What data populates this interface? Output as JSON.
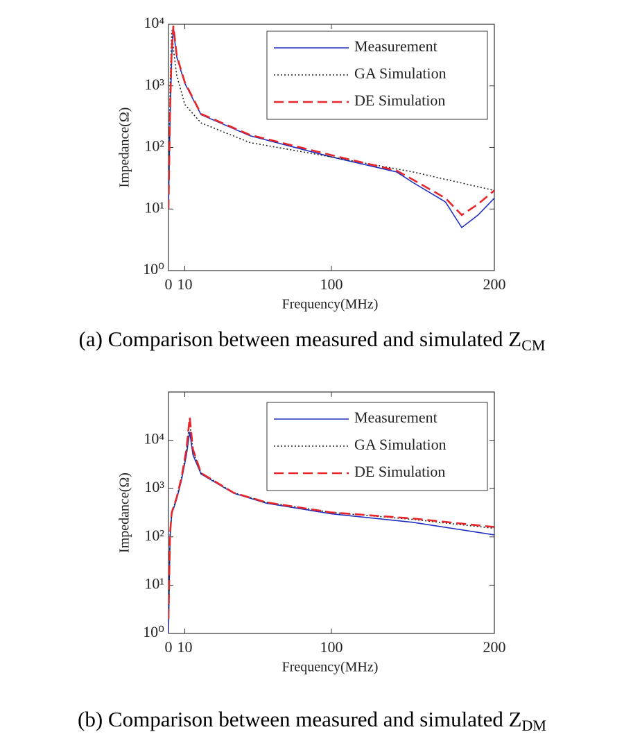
{
  "chart_data": [
    {
      "type": "line",
      "caption": "(a) Comparison between measured and simulated Z",
      "caption_sub": "CM",
      "xlabel": "Frequency(MHz)",
      "ylabel": "Impedance(Ω)",
      "xlim": [
        0,
        200
      ],
      "xticks": [
        0,
        10,
        100,
        200
      ],
      "ylim": [
        1,
        10000
      ],
      "yscale": "log",
      "yticks": [
        {
          "value": 1,
          "label": "10⁰"
        },
        {
          "value": 10,
          "label": "10¹"
        },
        {
          "value": 100,
          "label": "10²"
        },
        {
          "value": 1000,
          "label": "10³"
        },
        {
          "value": 10000,
          "label": "10⁴"
        }
      ],
      "legend": "upper right",
      "series": [
        {
          "name": "Measurement",
          "color": "#1f2fbf",
          "linestyle": "solid",
          "x": [
            0,
            1,
            2,
            3,
            4,
            5,
            7,
            10,
            20,
            50,
            100,
            140,
            150,
            170,
            180,
            190,
            200
          ],
          "values": [
            10,
            300,
            3000,
            9000,
            5000,
            3000,
            2000,
            1100,
            340,
            155,
            70,
            40,
            27,
            13,
            5,
            8,
            15
          ]
        },
        {
          "name": "GA Simulation",
          "color": "#222222",
          "linestyle": "dotted",
          "x": [
            0,
            1,
            2,
            3,
            5,
            10,
            20,
            50,
            100,
            150,
            200
          ],
          "values": [
            20,
            1000,
            8000,
            4000,
            1500,
            500,
            250,
            120,
            70,
            40,
            20
          ]
        },
        {
          "name": "DE Simulation",
          "color": "#e8262a",
          "linestyle": "dashed",
          "x": [
            0,
            1,
            2,
            3,
            4,
            5,
            7,
            10,
            20,
            50,
            100,
            140,
            150,
            170,
            180,
            190,
            200
          ],
          "values": [
            10,
            400,
            4000,
            9500,
            5500,
            3200,
            2100,
            1150,
            350,
            160,
            75,
            42,
            30,
            15,
            8,
            12,
            20
          ]
        }
      ]
    },
    {
      "type": "line",
      "caption": "(b) Comparison between measured and simulated Z",
      "caption_sub": "DM",
      "xlabel": "Frequency(MHz)",
      "ylabel": "Impedance(Ω)",
      "xlim": [
        0,
        200
      ],
      "xticks": [
        0,
        10,
        100,
        200
      ],
      "ylim": [
        1,
        100000
      ],
      "yscale": "log",
      "yticks": [
        {
          "value": 1,
          "label": "10⁰"
        },
        {
          "value": 10,
          "label": "10¹"
        },
        {
          "value": 100,
          "label": "10²"
        },
        {
          "value": 1000,
          "label": "10³"
        },
        {
          "value": 10000,
          "label": "10⁴"
        }
      ],
      "legend": "upper right",
      "series": [
        {
          "name": "Measurement",
          "color": "#1f2fbf",
          "linestyle": "solid",
          "x": [
            0,
            1,
            2,
            5,
            8,
            11,
            13,
            15,
            20,
            40,
            60,
            100,
            150,
            200
          ],
          "values": [
            1,
            100,
            300,
            600,
            1500,
            5000,
            15000,
            5000,
            2000,
            800,
            500,
            300,
            200,
            110
          ]
        },
        {
          "name": "GA Simulation",
          "color": "#222222",
          "linestyle": "dotted",
          "x": [
            0,
            1,
            2,
            5,
            8,
            11,
            13,
            15,
            20,
            40,
            60,
            100,
            150,
            200
          ],
          "values": [
            2,
            120,
            320,
            650,
            1700,
            6000,
            25000,
            6000,
            2100,
            820,
            520,
            320,
            230,
            150
          ]
        },
        {
          "name": "DE Simulation",
          "color": "#e8262a",
          "linestyle": "dashed",
          "x": [
            0,
            1,
            2,
            5,
            8,
            11,
            13,
            15,
            20,
            40,
            60,
            100,
            150,
            200
          ],
          "values": [
            2,
            120,
            320,
            650,
            1700,
            6500,
            30000,
            6500,
            2100,
            820,
            520,
            320,
            240,
            160
          ]
        }
      ]
    }
  ]
}
